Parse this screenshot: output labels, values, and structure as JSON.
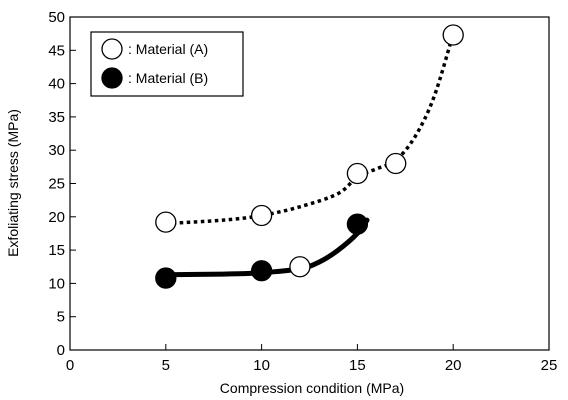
{
  "chart_data": {
    "type": "scatter",
    "title": "",
    "xlabel": "Compression condition (MPa)",
    "ylabel": "Exfoliating stress (MPa)",
    "xlim": [
      0,
      25
    ],
    "ylim": [
      0,
      50
    ],
    "xticks": [
      0,
      5,
      10,
      15,
      20,
      25
    ],
    "yticks": [
      0,
      5,
      10,
      15,
      20,
      25,
      30,
      35,
      40,
      45,
      50
    ],
    "grid": false,
    "legend_position": "top-left",
    "series": [
      {
        "name": ": Material (A)",
        "marker": "open-circle",
        "line_style": "dotted",
        "x": [
          5,
          10,
          12,
          15,
          17,
          20
        ],
        "y": [
          19.2,
          20.2,
          12.5,
          26.5,
          28.0,
          47.3
        ],
        "trend_x": [
          5,
          8,
          10,
          12,
          14,
          15,
          16,
          17,
          18,
          19,
          20
        ],
        "trend_y": [
          19.0,
          19.5,
          20.2,
          21.5,
          23.5,
          26.0,
          27.2,
          28.5,
          32.0,
          38.0,
          47.5
        ]
      },
      {
        "name": ": Material (B)",
        "marker": "filled-circle",
        "line_style": "solid",
        "x": [
          5,
          10,
          15
        ],
        "y": [
          10.8,
          11.9,
          18.9
        ],
        "trend_x": [
          5,
          8,
          10,
          12,
          13,
          14,
          15,
          15.5
        ],
        "trend_y": [
          11.3,
          11.4,
          11.6,
          12.2,
          13.2,
          15.0,
          17.5,
          19.5
        ]
      }
    ]
  }
}
